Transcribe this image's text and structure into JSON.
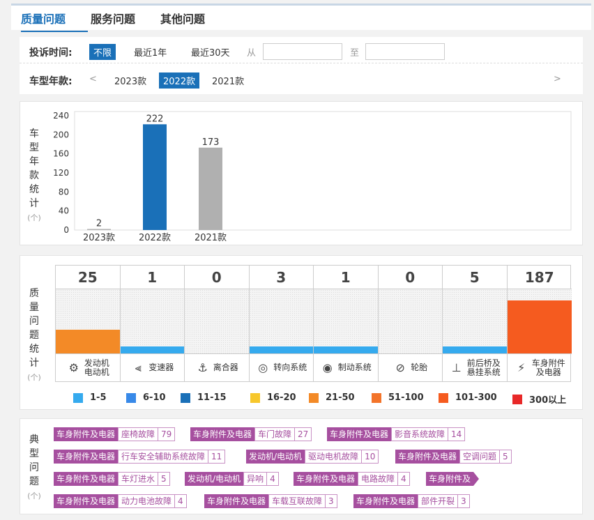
{
  "tabs": [
    {
      "label": "质量问题",
      "active": true
    },
    {
      "label": "服务问题",
      "active": false
    },
    {
      "label": "其他问题",
      "active": false
    }
  ],
  "filters": {
    "time": {
      "label": "投诉时间:",
      "options": [
        "不限",
        "最近1年",
        "最近30天"
      ],
      "selected": "不限",
      "from_label": "从",
      "to_label": "至",
      "from_value": "",
      "to_value": ""
    },
    "year": {
      "label": "车型年款:",
      "prev": "<",
      "next": ">",
      "options": [
        "2023款",
        "2022款",
        "2021款"
      ],
      "selected": "2022款"
    }
  },
  "year_stats": {
    "side_label": [
      "车",
      "型",
      "年",
      "款",
      "统",
      "计"
    ],
    "unit": "(个)"
  },
  "chart_data": {
    "type": "bar",
    "categories": [
      "2023款",
      "2022款",
      "2021款"
    ],
    "values": [
      2,
      222,
      173
    ],
    "colors": [
      "#b0b0b0",
      "#1a70b8",
      "#b0b0b0"
    ],
    "ylim": [
      0,
      240
    ],
    "yticks": [
      0,
      40,
      80,
      120,
      160,
      200,
      240
    ],
    "ylabel": "车型年款统计",
    "unit": "(个)",
    "grid": false
  },
  "quality": {
    "side_label": [
      "质",
      "量",
      "问",
      "题",
      "统",
      "计"
    ],
    "unit": "(个)",
    "max": 187,
    "items": [
      {
        "count": "25",
        "value": 25,
        "name": [
          "发动机",
          "电动机"
        ],
        "icon": "engine-icon",
        "glyph": "⚙",
        "color": "#f38a27"
      },
      {
        "count": "1",
        "value": 1,
        "name": [
          "变速器"
        ],
        "icon": "gearshift-icon",
        "glyph": "⫷",
        "color": "#35aaee"
      },
      {
        "count": "0",
        "value": 0,
        "name": [
          "离合器"
        ],
        "icon": "clutch-icon",
        "glyph": "⚓",
        "color": "#35aaee"
      },
      {
        "count": "3",
        "value": 3,
        "name": [
          "转向系统"
        ],
        "icon": "steering-wheel-icon",
        "glyph": "◎",
        "color": "#35aaee"
      },
      {
        "count": "1",
        "value": 1,
        "name": [
          "制动系统"
        ],
        "icon": "brake-disc-icon",
        "glyph": "◉",
        "color": "#35aaee"
      },
      {
        "count": "0",
        "value": 0,
        "name": [
          "轮胎"
        ],
        "icon": "tire-icon",
        "glyph": "⊘",
        "color": "#35aaee"
      },
      {
        "count": "5",
        "value": 5,
        "name": [
          "前后桥及",
          "悬挂系统"
        ],
        "icon": "suspension-icon",
        "glyph": "⊥",
        "color": "#35aaee"
      },
      {
        "count": "187",
        "value": 187,
        "name": [
          "车身附件",
          "及电器"
        ],
        "icon": "body-electrical-icon",
        "glyph": "⚡",
        "color": "#f55b1f"
      }
    ],
    "legend": [
      {
        "label": "1-5",
        "color": "#35aaee"
      },
      {
        "label": "6-10",
        "color": "#3889e8"
      },
      {
        "label": "11-15",
        "color": "#1a70b8"
      },
      {
        "label": "16-20",
        "color": "#f7c72c"
      },
      {
        "label": "21-50",
        "color": "#f38a27"
      },
      {
        "label": "51-100",
        "color": "#f3742a"
      },
      {
        "label": "101-300",
        "color": "#f55b1f"
      },
      {
        "label": "300以上",
        "color": "#e82828"
      }
    ]
  },
  "typical": {
    "side_label": [
      "典",
      "型",
      "问",
      "题"
    ],
    "unit": "(个)",
    "rows": [
      [
        {
          "cat": "车身附件及电器",
          "name": "座椅故障",
          "count": "79"
        },
        {
          "cat": "车身附件及电器",
          "name": "车门故障",
          "count": "27"
        },
        {
          "cat": "车身附件及电器",
          "name": "影音系统故障",
          "count": "14"
        }
      ],
      [
        {
          "cat": "车身附件及电器",
          "name": "行车安全辅助系统故障",
          "count": "11"
        },
        {
          "cat": "发动机/电动机",
          "name": "驱动电机故障",
          "count": "10"
        },
        {
          "cat": "车身附件及电器",
          "name": "空调问题",
          "count": "5"
        }
      ],
      [
        {
          "cat": "车身附件及电器",
          "name": "车灯进水",
          "count": "5"
        },
        {
          "cat": "发动机/电动机",
          "name": "异响",
          "count": "4"
        },
        {
          "cat": "车身附件及电器",
          "name": "电路故障",
          "count": "4"
        },
        {
          "cat": "车身附件及",
          "name": "",
          "count": "",
          "truncated": true
        }
      ],
      [
        {
          "cat": "车身附件及电器",
          "name": "动力电池故障",
          "count": "4"
        },
        {
          "cat": "车身附件及电器",
          "name": "车载互联故障",
          "count": "3"
        },
        {
          "cat": "车身附件及电器",
          "name": "部件开裂",
          "count": "3"
        }
      ]
    ]
  }
}
